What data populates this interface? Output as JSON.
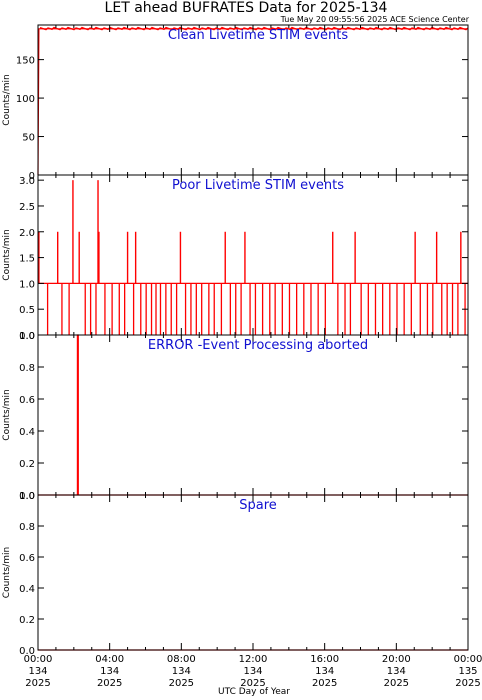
{
  "title": "LET ahead BUFRATES Data for 2025-134",
  "stamp": "Tue May 20 09:55:56 2025 ACE Science Center",
  "xlabel": "UTC Day of Year",
  "colors": {
    "trace": "#ff0000",
    "panel_title": "#1010d0",
    "axes": "#000000"
  },
  "x_ticks": [
    {
      "hhmm": "00:00",
      "doy": "134",
      "year": "2025"
    },
    {
      "hhmm": "04:00",
      "doy": "134",
      "year": "2025"
    },
    {
      "hhmm": "08:00",
      "doy": "134",
      "year": "2025"
    },
    {
      "hhmm": "12:00",
      "doy": "134",
      "year": "2025"
    },
    {
      "hhmm": "16:00",
      "doy": "134",
      "year": "2025"
    },
    {
      "hhmm": "20:00",
      "doy": "134",
      "year": "2025"
    },
    {
      "hhmm": "00:00",
      "doy": "135",
      "year": "2025"
    }
  ],
  "chart_data": [
    {
      "type": "line",
      "title": "Clean Livetime STIM events",
      "ylabel": "Counts/min",
      "ylim": [
        0,
        195
      ],
      "xlim_hours": [
        0,
        24
      ],
      "yticks": [
        "0",
        "50",
        "100",
        "150"
      ],
      "ytick_values": [
        0,
        50,
        100,
        150
      ],
      "series": [
        {
          "x": [
            0.0,
            0.05,
            0.1,
            24.0
          ],
          "y": [
            0,
            190,
            190,
            190
          ]
        }
      ]
    },
    {
      "type": "line",
      "title": "Poor Livetime STIM events",
      "ylabel": "Counts/min",
      "ylim": [
        0,
        3.1
      ],
      "xlim_hours": [
        0,
        24
      ],
      "yticks": [
        "0.0",
        "0.5",
        "1.0",
        "1.5",
        "2.0",
        "2.5",
        "3.0"
      ],
      "ytick_values": [
        0,
        0.5,
        1.0,
        1.5,
        2.0,
        2.5,
        3.0
      ],
      "baseline": 1,
      "spikes": [
        {
          "x": 0.05,
          "y": 2
        },
        {
          "x": 1.1,
          "y": 2
        },
        {
          "x": 1.95,
          "y": 3
        },
        {
          "x": 2.3,
          "y": 2
        },
        {
          "x": 3.35,
          "y": 3
        },
        {
          "x": 3.4,
          "y": 2
        },
        {
          "x": 5.0,
          "y": 2
        },
        {
          "x": 5.45,
          "y": 2
        },
        {
          "x": 7.95,
          "y": 2
        },
        {
          "x": 10.45,
          "y": 2
        },
        {
          "x": 11.55,
          "y": 2
        },
        {
          "x": 16.45,
          "y": 2
        },
        {
          "x": 17.7,
          "y": 2
        },
        {
          "x": 21.05,
          "y": 2
        },
        {
          "x": 22.25,
          "y": 2
        },
        {
          "x": 23.6,
          "y": 2
        }
      ],
      "zeros": [
        0.5,
        1.3,
        1.7,
        2.6,
        2.9,
        3.2,
        3.7,
        4.1,
        4.5,
        4.8,
        5.3,
        5.7,
        6.0,
        6.3,
        6.55,
        6.8,
        7.1,
        7.4,
        7.7,
        8.2,
        8.5,
        8.8,
        9.1,
        9.5,
        9.8,
        10.2,
        10.7,
        11.0,
        11.3,
        11.8,
        12.1,
        12.5,
        12.9,
        13.2,
        13.6,
        14.0,
        14.4,
        14.8,
        15.2,
        15.6,
        16.0,
        16.7,
        17.1,
        17.4,
        18.0,
        18.4,
        18.8,
        19.2,
        19.6,
        20.0,
        20.4,
        20.8,
        21.3,
        21.7,
        22.0,
        22.5,
        22.8,
        23.1,
        23.4,
        23.8
      ]
    },
    {
      "type": "line",
      "title": "ERROR -Event Processing aborted",
      "ylabel": "Counts/min",
      "ylim": [
        0,
        1.0
      ],
      "xlim_hours": [
        0,
        24
      ],
      "yticks": [
        "0.0",
        "0.2",
        "0.4",
        "0.6",
        "0.8",
        "1.0"
      ],
      "ytick_values": [
        0,
        0.2,
        0.4,
        0.6,
        0.8,
        1.0
      ],
      "series": [
        {
          "x": [
            0.0,
            2.2,
            2.2,
            2.25,
            2.25,
            24.0
          ],
          "y": [
            0,
            0,
            1,
            1,
            0,
            0
          ]
        }
      ]
    },
    {
      "type": "line",
      "title": "Spare",
      "ylabel": "Counts/min",
      "ylim": [
        0,
        1.0
      ],
      "xlim_hours": [
        0,
        24
      ],
      "yticks": [
        "0.0",
        "0.2",
        "0.4",
        "0.6",
        "0.8",
        "1.0"
      ],
      "ytick_values": [
        0,
        0.2,
        0.4,
        0.6,
        0.8,
        1.0
      ],
      "series": [
        {
          "x": [
            0.0,
            24.0
          ],
          "y": [
            0,
            0
          ]
        }
      ]
    }
  ]
}
